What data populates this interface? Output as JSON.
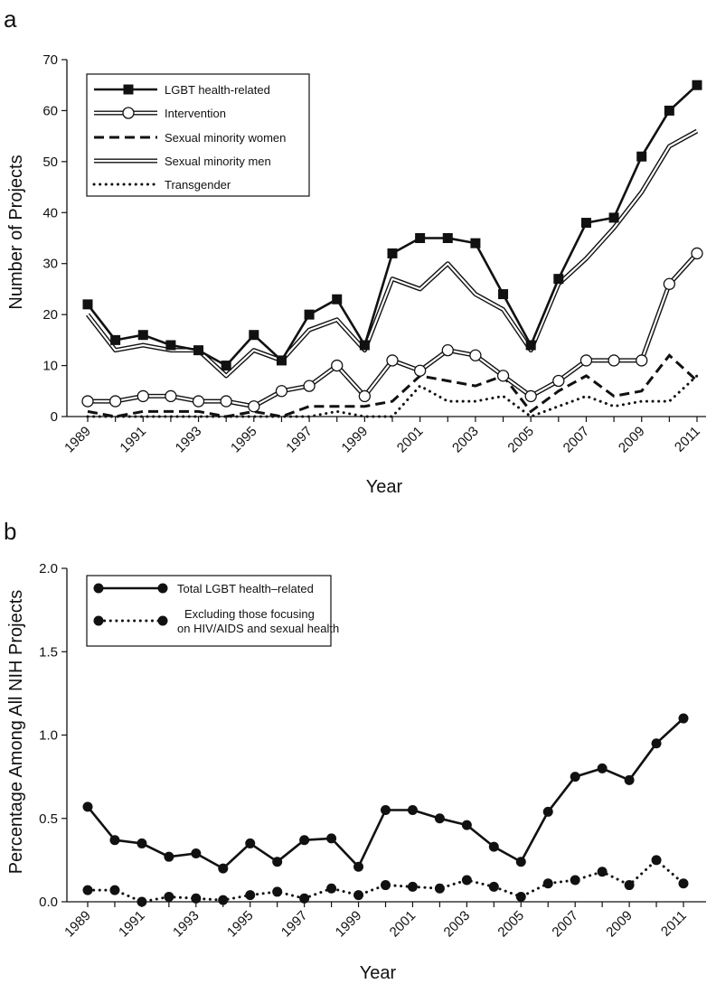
{
  "chart_data": [
    {
      "panel_label": "a",
      "type": "line",
      "xlabel": "Year",
      "ylabel": "Number of Projects",
      "ylim": [
        0,
        70
      ],
      "xlim": [
        1989,
        2011
      ],
      "yticks": [
        "0",
        "10",
        "20",
        "30",
        "40",
        "50",
        "60",
        "70"
      ],
      "xticks": [
        "1989",
        "1991",
        "1993",
        "1995",
        "1997",
        "1999",
        "2001",
        "2003",
        "2005",
        "2007",
        "2009",
        "2011"
      ],
      "legend_position": "top-left",
      "x": [
        1989,
        1990,
        1991,
        1992,
        1993,
        1994,
        1995,
        1996,
        1997,
        1998,
        1999,
        2000,
        2001,
        2002,
        2003,
        2004,
        2005,
        2006,
        2007,
        2008,
        2009,
        2010,
        2011
      ],
      "series": [
        {
          "name": "LGBT health-related",
          "style": "solid-square",
          "color": "#111111",
          "values": [
            22,
            15,
            16,
            14,
            13,
            10,
            16,
            11,
            20,
            23,
            14,
            32,
            35,
            35,
            34,
            24,
            14,
            27,
            38,
            39,
            51,
            60,
            65
          ]
        },
        {
          "name": "Intervention",
          "style": "double-circle",
          "color": "#111111",
          "values": [
            3,
            3,
            4,
            4,
            3,
            3,
            2,
            5,
            6,
            10,
            4,
            11,
            9,
            13,
            12,
            8,
            4,
            7,
            11,
            11,
            11,
            26,
            32
          ]
        },
        {
          "name": "Sexual minority women",
          "style": "dashed",
          "color": "#111111",
          "values": [
            1,
            0,
            1,
            1,
            1,
            0,
            1,
            0,
            2,
            2,
            2,
            3,
            8,
            7,
            6,
            8,
            1,
            5,
            8,
            4,
            5,
            12,
            7
          ]
        },
        {
          "name": "Sexual minority men",
          "style": "double",
          "color": "#111111",
          "values": [
            20,
            13,
            14,
            13,
            13,
            8,
            13,
            11,
            17,
            19,
            13,
            27,
            25,
            30,
            24,
            21,
            13,
            26,
            31,
            37,
            44,
            53,
            56
          ]
        },
        {
          "name": "Transgender",
          "style": "dotted",
          "color": "#111111",
          "values": [
            0,
            0,
            0,
            0,
            0,
            0,
            0,
            0,
            0,
            1,
            0,
            0,
            6,
            3,
            3,
            4,
            0,
            2,
            4,
            2,
            3,
            3,
            8
          ]
        }
      ]
    },
    {
      "panel_label": "b",
      "type": "line",
      "xlabel": "Year",
      "ylabel": "Percentage Among All NIH Projects",
      "ylim": [
        0,
        2.0
      ],
      "xlim": [
        1989,
        2011
      ],
      "yticks": [
        "0.0",
        "0.5",
        "1.0",
        "1.5",
        "2.0"
      ],
      "xticks": [
        "1989",
        "1991",
        "1993",
        "1995",
        "1997",
        "1999",
        "2001",
        "2003",
        "2005",
        "2007",
        "2009",
        "2011"
      ],
      "legend_position": "top-left",
      "x": [
        1989,
        1990,
        1991,
        1992,
        1993,
        1994,
        1995,
        1996,
        1997,
        1998,
        1999,
        2000,
        2001,
        2002,
        2003,
        2004,
        2005,
        2006,
        2007,
        2008,
        2009,
        2010,
        2011
      ],
      "series": [
        {
          "name": "Total LGBT health–related",
          "legend_lines": [
            "Total LGBT health–related"
          ],
          "style": "solid-dot",
          "color": "#111111",
          "values": [
            0.57,
            0.37,
            0.35,
            0.27,
            0.29,
            0.2,
            0.35,
            0.24,
            0.37,
            0.38,
            0.21,
            0.55,
            0.55,
            0.5,
            0.46,
            0.33,
            0.24,
            0.54,
            0.75,
            0.8,
            0.73,
            0.95,
            1.1
          ]
        },
        {
          "name": "Excluding those focusing on HIV/AIDS and sexual health",
          "legend_lines": [
            "Excluding those focusing",
            "on HIV/AIDS and sexual health"
          ],
          "style": "dotted-dot",
          "color": "#111111",
          "values": [
            0.07,
            0.07,
            0.0,
            0.03,
            0.02,
            0.01,
            0.04,
            0.06,
            0.02,
            0.08,
            0.04,
            0.1,
            0.09,
            0.08,
            0.13,
            0.09,
            0.03,
            0.11,
            0.13,
            0.18,
            0.1,
            0.25,
            0.11
          ]
        }
      ]
    }
  ]
}
